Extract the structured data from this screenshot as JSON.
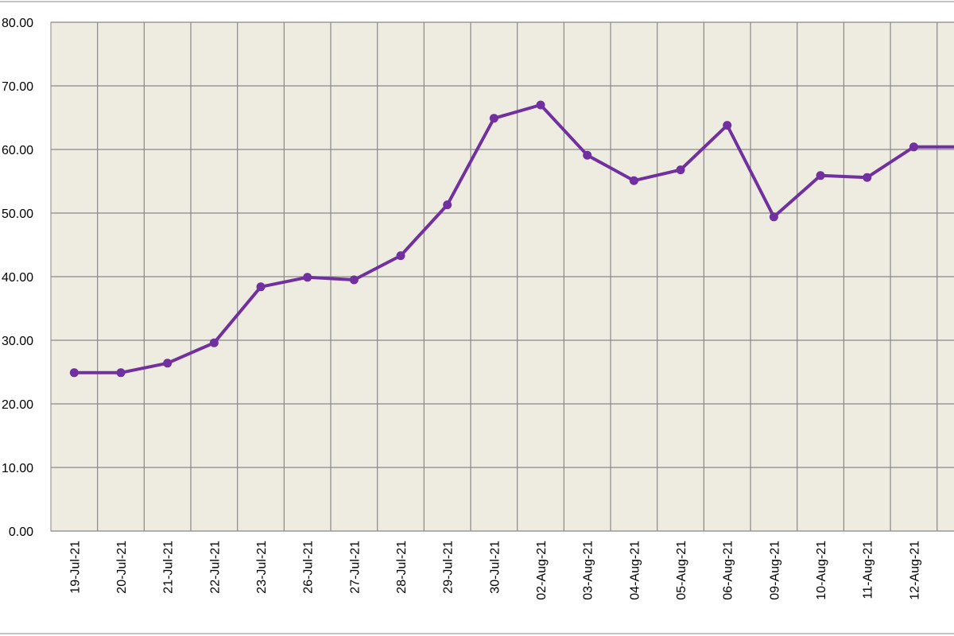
{
  "chart_data": {
    "type": "line",
    "categories": [
      "19-Jul-21",
      "20-Jul-21",
      "21-Jul-21",
      "22-Jul-21",
      "23-Jul-21",
      "26-Jul-21",
      "27-Jul-21",
      "28-Jul-21",
      "29-Jul-21",
      "30-Jul-21",
      "02-Aug-21",
      "03-Aug-21",
      "04-Aug-21",
      "05-Aug-21",
      "06-Aug-21",
      "09-Aug-21",
      "10-Aug-21",
      "11-Aug-21",
      "12-Aug-21",
      null
    ],
    "series": [
      {
        "color": "#7030a0",
        "values": [
          24.9,
          24.9,
          26.4,
          29.6,
          38.4,
          39.9,
          39.5,
          43.3,
          51.3,
          64.9,
          67.0,
          59.1,
          55.1,
          56.8,
          63.8,
          49.4,
          55.9,
          55.6,
          60.4,
          60.4
        ]
      }
    ],
    "ylim": [
      0,
      80
    ],
    "yticks": [
      {
        "value": 0,
        "label": "0.00"
      },
      {
        "value": 10,
        "label": "10.00"
      },
      {
        "value": 20,
        "label": "20.00"
      },
      {
        "value": 30,
        "label": "30.00"
      },
      {
        "value": 40,
        "label": "40.00"
      },
      {
        "value": 50,
        "label": "50.00"
      },
      {
        "value": 60,
        "label": "60.00"
      },
      {
        "value": 70,
        "label": "70.00"
      },
      {
        "value": 80,
        "label": "80.00"
      }
    ],
    "grid": true,
    "background": "#eeebe0"
  }
}
